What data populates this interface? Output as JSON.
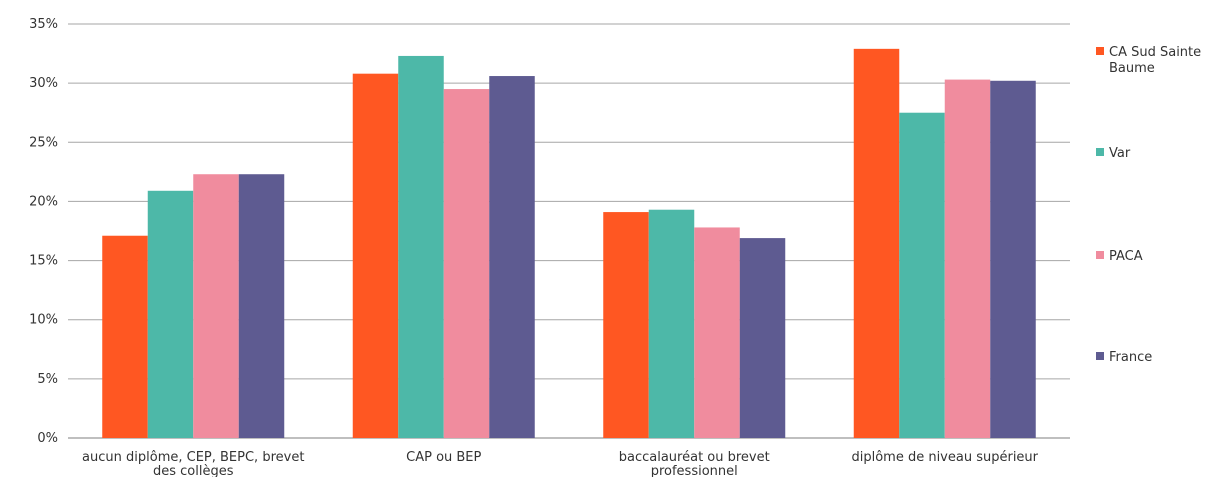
{
  "chart_data": {
    "type": "bar",
    "categories": [
      [
        "aucun diplôme, CEP, BEPC, brevet",
        "des collèges"
      ],
      [
        "CAP ou BEP"
      ],
      [
        "baccalauréat ou brevet",
        "professionnel"
      ],
      [
        "diplôme de niveau supérieur"
      ]
    ],
    "series": [
      {
        "name": [
          "CA Sud Sainte",
          "Baume"
        ],
        "color": "#FF5722",
        "values": [
          17.1,
          30.8,
          19.1,
          32.9
        ]
      },
      {
        "name": [
          "Var"
        ],
        "color": "#4DB8A8",
        "values": [
          20.9,
          32.3,
          19.3,
          27.5
        ]
      },
      {
        "name": [
          "PACA"
        ],
        "color": "#F08C9E",
        "values": [
          22.3,
          29.5,
          17.8,
          30.3
        ]
      },
      {
        "name": [
          "France"
        ],
        "color": "#5E5B91",
        "values": [
          22.3,
          30.6,
          16.9,
          30.2
        ]
      }
    ],
    "ylim": [
      0,
      35
    ],
    "yticks": [
      "0%",
      "5%",
      "10%",
      "15%",
      "20%",
      "25%",
      "30%",
      "35%"
    ],
    "grid": true,
    "legend_position": "right"
  }
}
